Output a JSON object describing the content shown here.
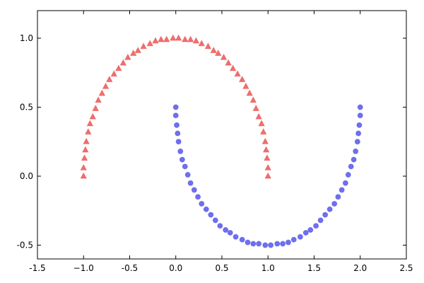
{
  "chart_data": {
    "type": "scatter",
    "xlim": [
      -1.5,
      2.5
    ],
    "xticks": [
      -1.5,
      {
        "value": -1.0,
        "label": "−1.0"
      },
      -0.5,
      {
        "value": 0.0,
        "label": "0.0"
      },
      0.5,
      {
        "value": 1.0,
        "label": "1.0"
      },
      1.5,
      {
        "value": 2.0,
        "label": "2.0"
      },
      2.5
    ],
    "ylim": [
      -0.6,
      1.2
    ],
    "yticks": [
      -0.5,
      {
        "value": 0.0,
        "label": "0.0"
      },
      0.5,
      {
        "value": 1.0,
        "label": "1.0"
      }
    ],
    "grid": false,
    "series": [
      {
        "color": "#e8403f",
        "marker": "triangle",
        "x": [
          1.0,
          1.0,
          0.99,
          0.98,
          0.97,
          0.95,
          0.93,
          0.9,
          0.87,
          0.84,
          0.8,
          0.76,
          0.72,
          0.67,
          0.62,
          0.57,
          0.52,
          0.46,
          0.41,
          0.35,
          0.28,
          0.22,
          0.16,
          0.1,
          0.03,
          -0.03,
          -0.1,
          -0.16,
          -0.22,
          -0.28,
          -0.35,
          -0.41,
          -0.46,
          -0.52,
          -0.57,
          -0.62,
          -0.67,
          -0.72,
          -0.76,
          -0.8,
          -0.84,
          -0.87,
          -0.9,
          -0.93,
          -0.95,
          -0.97,
          -0.98,
          -0.99,
          -1.0,
          -1.0
        ],
        "values": [
          0.0,
          0.06,
          0.13,
          0.19,
          0.25,
          0.32,
          0.38,
          0.43,
          0.49,
          0.55,
          0.6,
          0.65,
          0.7,
          0.74,
          0.78,
          0.82,
          0.86,
          0.89,
          0.91,
          0.94,
          0.96,
          0.98,
          0.99,
          0.99,
          1.0,
          1.0,
          0.99,
          0.99,
          0.98,
          0.96,
          0.94,
          0.91,
          0.89,
          0.86,
          0.82,
          0.78,
          0.74,
          0.7,
          0.65,
          0.6,
          0.55,
          0.49,
          0.43,
          0.38,
          0.32,
          0.25,
          0.19,
          0.13,
          0.06,
          0.0
        ]
      },
      {
        "color": "#4040e8",
        "marker": "circle",
        "x": [
          0.0,
          0.0,
          0.01,
          0.02,
          0.03,
          0.05,
          0.07,
          0.1,
          0.13,
          0.16,
          0.2,
          0.24,
          0.28,
          0.33,
          0.38,
          0.43,
          0.48,
          0.54,
          0.59,
          0.65,
          0.72,
          0.78,
          0.84,
          0.9,
          0.97,
          1.03,
          1.1,
          1.16,
          1.22,
          1.28,
          1.35,
          1.41,
          1.46,
          1.52,
          1.57,
          1.62,
          1.67,
          1.72,
          1.76,
          1.8,
          1.84,
          1.87,
          1.9,
          1.93,
          1.95,
          1.97,
          1.98,
          1.99,
          2.0,
          2.0
        ],
        "values": [
          0.5,
          0.44,
          0.37,
          0.31,
          0.25,
          0.18,
          0.12,
          0.07,
          0.01,
          -0.05,
          -0.1,
          -0.15,
          -0.2,
          -0.24,
          -0.28,
          -0.32,
          -0.36,
          -0.39,
          -0.41,
          -0.44,
          -0.46,
          -0.48,
          -0.49,
          -0.49,
          -0.5,
          -0.5,
          -0.49,
          -0.49,
          -0.48,
          -0.46,
          -0.44,
          -0.41,
          -0.39,
          -0.36,
          -0.32,
          -0.28,
          -0.24,
          -0.2,
          -0.15,
          -0.1,
          -0.05,
          0.01,
          0.07,
          0.12,
          0.18,
          0.25,
          0.31,
          0.37,
          0.44,
          0.5
        ]
      }
    ]
  }
}
